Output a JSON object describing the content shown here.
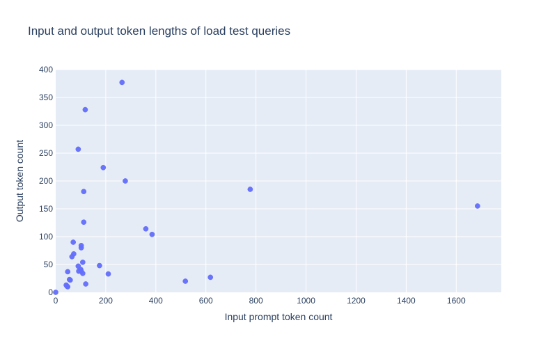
{
  "chart_data": {
    "type": "scatter",
    "title": "Input and output token lengths of load test queries",
    "xlabel": "Input prompt token count",
    "ylabel": "Output token count",
    "xlim": [
      0,
      1780
    ],
    "ylim": [
      0,
      400
    ],
    "x_ticks": [
      0,
      200,
      400,
      600,
      800,
      1000,
      1200,
      1400,
      1600
    ],
    "y_ticks": [
      0,
      50,
      100,
      150,
      200,
      250,
      300,
      350,
      400
    ],
    "grid": true,
    "legend": "none",
    "colors": {
      "plot_bg": "#e5ecf6",
      "grid": "#ffffff",
      "marker": "#636efa",
      "text": "#2a3f5f"
    },
    "series": [
      {
        "points": [
          {
            "x": 265,
            "y": 377
          },
          {
            "x": 118,
            "y": 328
          },
          {
            "x": 90,
            "y": 257
          },
          {
            "x": 190,
            "y": 224
          },
          {
            "x": 278,
            "y": 200
          },
          {
            "x": 777,
            "y": 185
          },
          {
            "x": 112,
            "y": 181
          },
          {
            "x": 1685,
            "y": 155
          },
          {
            "x": 112,
            "y": 126
          },
          {
            "x": 360,
            "y": 114
          },
          {
            "x": 385,
            "y": 104
          },
          {
            "x": 70,
            "y": 90
          },
          {
            "x": 102,
            "y": 84
          },
          {
            "x": 102,
            "y": 80
          },
          {
            "x": 72,
            "y": 69
          },
          {
            "x": 65,
            "y": 64
          },
          {
            "x": 108,
            "y": 54
          },
          {
            "x": 175,
            "y": 48
          },
          {
            "x": 90,
            "y": 47
          },
          {
            "x": 100,
            "y": 41
          },
          {
            "x": 48,
            "y": 37
          },
          {
            "x": 92,
            "y": 38
          },
          {
            "x": 102,
            "y": 38
          },
          {
            "x": 108,
            "y": 34
          },
          {
            "x": 210,
            "y": 33
          },
          {
            "x": 618,
            "y": 27
          },
          {
            "x": 55,
            "y": 23
          },
          {
            "x": 58,
            "y": 22
          },
          {
            "x": 518,
            "y": 20
          },
          {
            "x": 120,
            "y": 15
          },
          {
            "x": 42,
            "y": 13
          },
          {
            "x": 45,
            "y": 11
          },
          {
            "x": 48,
            "y": 10
          },
          {
            "x": 0,
            "y": 0
          }
        ]
      }
    ]
  }
}
